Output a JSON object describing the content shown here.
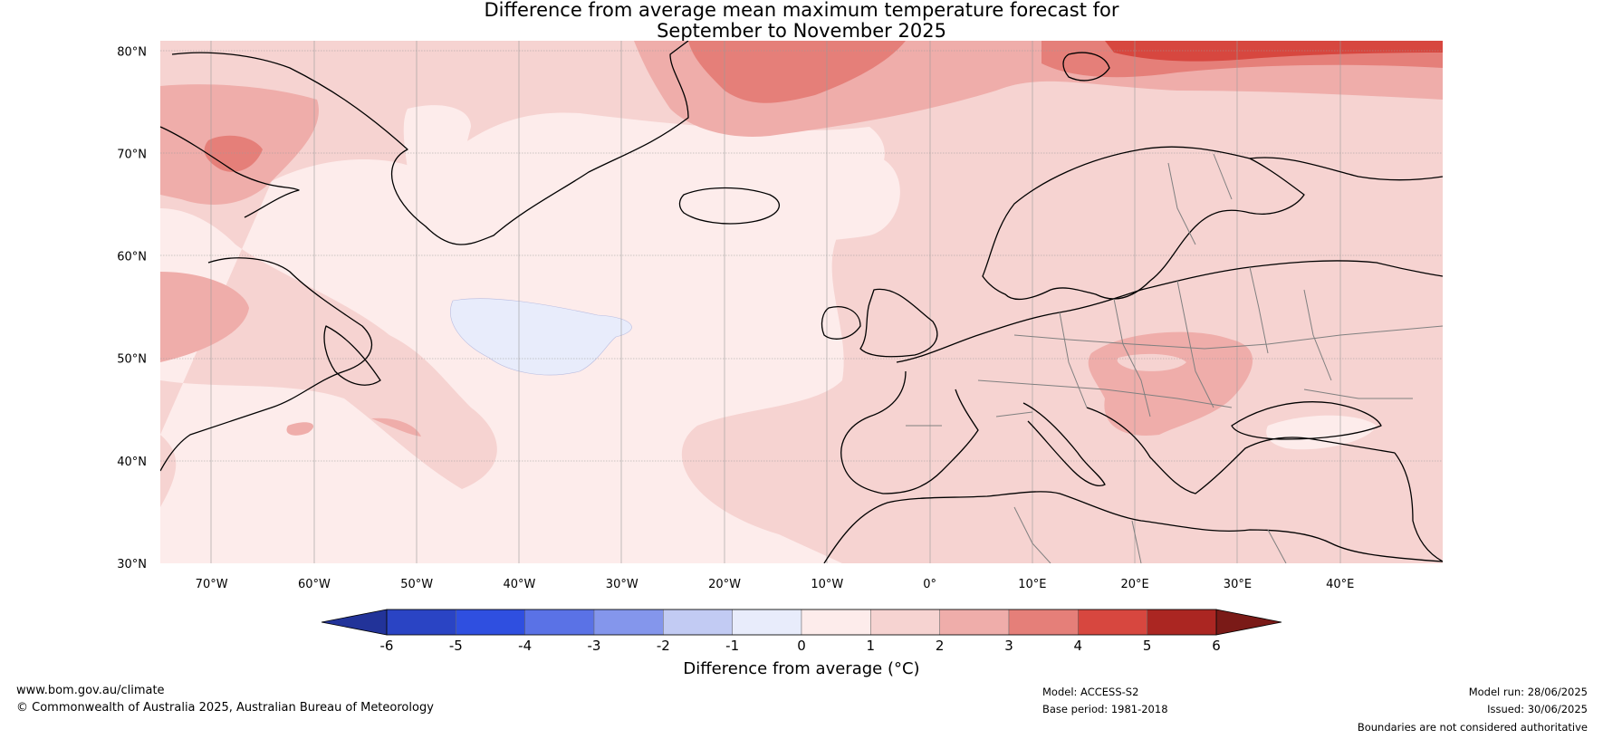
{
  "title": {
    "line1": "Difference from average mean maximum temperature forecast for",
    "line2": "September to November 2025"
  },
  "map": {
    "lat_labels": [
      "80°N",
      "70°N",
      "60°N",
      "50°N",
      "40°N",
      "30°N"
    ],
    "lon_labels": [
      "70°W",
      "60°W",
      "50°W",
      "40°W",
      "30°W",
      "20°W",
      "10°W",
      "0°",
      "10°E",
      "20°E",
      "30°E",
      "40°E"
    ],
    "extent": {
      "lon": [
        -75,
        50
      ],
      "lat": [
        30,
        81
      ]
    },
    "land_boundary_color": "#000000",
    "country_boundary_color": "#808080"
  },
  "colorbar": {
    "ticks": [
      "-6",
      "-5",
      "-4",
      "-3",
      "-2",
      "-1",
      "0",
      "1",
      "2",
      "3",
      "4",
      "5",
      "6"
    ],
    "colors": [
      "#223399",
      "#2a44c4",
      "#2f4fe0",
      "#5a72e6",
      "#8496ec",
      "#c2cbf3",
      "#e8ecfb",
      "#fdeceb",
      "#f6d3d1",
      "#efadaa",
      "#e57f79",
      "#d7473f",
      "#ab2622",
      "#7a1a17"
    ],
    "label": "Difference from average (°C)",
    "extend": "both"
  },
  "footer": {
    "url": "www.bom.gov.au/climate",
    "copyright": "© Commonwealth of Australia 2025, Australian Bureau of Meteorology",
    "model": "Model: ACCESS-S2",
    "base_period": "Base period: 1981-2018",
    "model_run": "Model run: 28/06/2025",
    "issued": "Issued: 30/06/2025",
    "disclaimer": "Boundaries are not considered authoritative"
  }
}
